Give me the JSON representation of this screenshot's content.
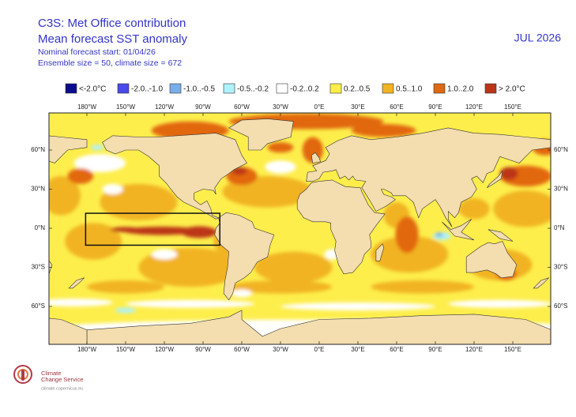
{
  "header": {
    "title": "C3S: Met Office contribution",
    "subtitle": "Mean forecast SST anomaly",
    "valid": "JUL 2026",
    "start": "Nominal forecast start: 01/04/26",
    "ensemble": "Ensemble size = 50, climate size = 672"
  },
  "legend": {
    "items": [
      {
        "label": "<-2.0°C",
        "color": "#0c0c8e"
      },
      {
        "label": "-2.0..-1.0",
        "color": "#4a4ae8"
      },
      {
        "label": "-1.0..-0.5",
        "color": "#78aeea"
      },
      {
        "label": "-0.5..-0.2",
        "color": "#aef2fb"
      },
      {
        "label": "-0.2..0.2",
        "color": "#ffffff"
      },
      {
        "label": "0.2..0.5",
        "color": "#fdee4c"
      },
      {
        "label": "0.5..1.0",
        "color": "#f1b323"
      },
      {
        "label": "1.0..2.0",
        "color": "#e2680f"
      },
      {
        "label": "> 2.0°C",
        "color": "#bb3419"
      }
    ]
  },
  "axes": {
    "lon_labels": [
      "180°W",
      "150°W",
      "120°W",
      "90°W",
      "60°W",
      "30°W",
      "0°E",
      "30°E",
      "60°E",
      "90°E",
      "120°E",
      "150°E"
    ],
    "lat_labels": [
      "60°N",
      "30°N",
      "0°N",
      "30°S",
      "60°S"
    ]
  },
  "logo": {
    "line1": "Climate",
    "line2": "Change Service",
    "url": "climate.copernicus.eu"
  }
}
